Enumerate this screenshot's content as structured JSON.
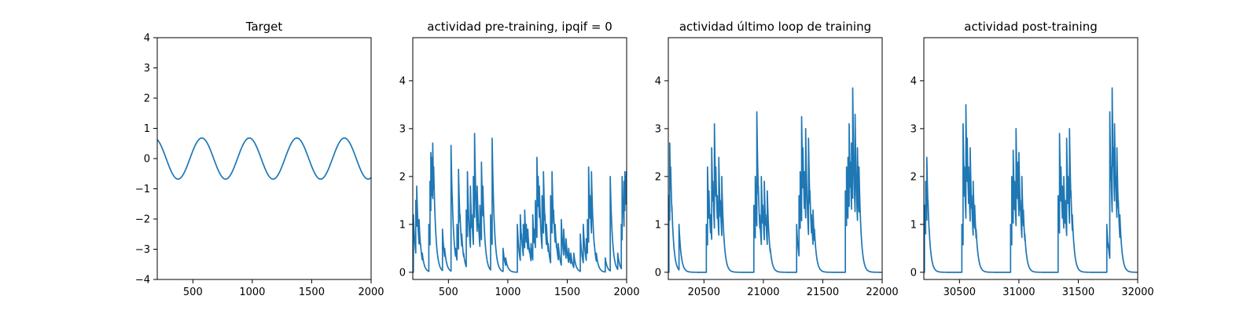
{
  "chart_data": [
    {
      "type": "line",
      "title": "Target",
      "xlabel": "",
      "ylabel": "",
      "xlim": [
        200,
        2000
      ],
      "ylim": [
        -4,
        4
      ],
      "xticks": [
        500,
        1000,
        1500,
        2000
      ],
      "yticks": [
        -4,
        -3,
        -2,
        -1,
        0,
        1,
        2,
        3,
        4
      ],
      "color": "#1f77b4",
      "grid": false,
      "series": [
        {
          "kind": "sine",
          "amplitude": 0.68,
          "period": 400,
          "peak_x": 575,
          "x_start": 200,
          "x_end": 2000
        }
      ]
    },
    {
      "type": "line",
      "title": "actividad pre-training, ipqif = 0",
      "xlabel": "",
      "ylabel": "",
      "xlim": [
        200,
        2000
      ],
      "ylim": [
        -0.15,
        4.9
      ],
      "xticks": [
        500,
        1000,
        1500,
        2000
      ],
      "yticks": [
        0,
        1,
        2,
        3,
        4
      ],
      "color": "#1f77b4",
      "grid": false,
      "series": [
        {
          "kind": "spikes",
          "baseline": 0,
          "decay": 18,
          "spikes": [
            [
              205,
              1.2
            ],
            [
              215,
              0.7
            ],
            [
              225,
              1.5
            ],
            [
              233,
              1.8
            ],
            [
              243,
              0.9
            ],
            [
              253,
              1.1
            ],
            [
              265,
              0.6
            ],
            [
              280,
              0.4
            ],
            [
              335,
              1.0
            ],
            [
              345,
              1.9
            ],
            [
              352,
              2.5
            ],
            [
              360,
              2.4
            ],
            [
              368,
              2.7
            ],
            [
              376,
              2.2
            ],
            [
              385,
              1.3
            ],
            [
              450,
              0.9
            ],
            [
              468,
              0.5
            ],
            [
              522,
              2.65
            ],
            [
              532,
              1.6
            ],
            [
              560,
              0.5
            ],
            [
              572,
              1.0
            ],
            [
              585,
              2.15
            ],
            [
              598,
              1.2
            ],
            [
              612,
              0.8
            ],
            [
              628,
              0.4
            ],
            [
              650,
              1.3
            ],
            [
              660,
              2.1
            ],
            [
              672,
              1.0
            ],
            [
              685,
              1.8
            ],
            [
              697,
              1.2
            ],
            [
              710,
              2.0
            ],
            [
              720,
              2.9
            ],
            [
              730,
              1.5
            ],
            [
              742,
              1.8
            ],
            [
              754,
              1.0
            ],
            [
              765,
              1.4
            ],
            [
              778,
              2.3
            ],
            [
              790,
              1.8
            ],
            [
              802,
              0.8
            ],
            [
              815,
              0.4
            ],
            [
              855,
              1.2
            ],
            [
              868,
              2.8
            ],
            [
              882,
              0.7
            ],
            [
              900,
              0.4
            ],
            [
              960,
              0.5
            ],
            [
              982,
              0.3
            ],
            [
              1080,
              1.0
            ],
            [
              1105,
              1.2
            ],
            [
              1115,
              0.8
            ],
            [
              1130,
              1.0
            ],
            [
              1142,
              1.3
            ],
            [
              1155,
              1.0
            ],
            [
              1168,
              0.9
            ],
            [
              1182,
              0.5
            ],
            [
              1195,
              0.6
            ],
            [
              1210,
              1.2
            ],
            [
              1222,
              0.9
            ],
            [
              1232,
              1.5
            ],
            [
              1245,
              2.4
            ],
            [
              1255,
              2.0
            ],
            [
              1265,
              1.8
            ],
            [
              1275,
              1.0
            ],
            [
              1288,
              1.6
            ],
            [
              1300,
              2.1
            ],
            [
              1312,
              1.2
            ],
            [
              1325,
              1.0
            ],
            [
              1340,
              0.6
            ],
            [
              1360,
              1.6
            ],
            [
              1372,
              2.1
            ],
            [
              1385,
              1.3
            ],
            [
              1398,
              1.0
            ],
            [
              1410,
              0.6
            ],
            [
              1425,
              0.6
            ],
            [
              1450,
              1.1
            ],
            [
              1470,
              0.9
            ],
            [
              1490,
              0.7
            ],
            [
              1512,
              0.5
            ],
            [
              1530,
              0.4
            ],
            [
              1555,
              0.4
            ],
            [
              1610,
              0.8
            ],
            [
              1635,
              1.0
            ],
            [
              1660,
              0.7
            ],
            [
              1670,
              1.1
            ],
            [
              1680,
              2.2
            ],
            [
              1692,
              1.6
            ],
            [
              1704,
              2.1
            ],
            [
              1716,
              1.1
            ],
            [
              1728,
              0.6
            ],
            [
              1745,
              0.4
            ],
            [
              1820,
              0.3
            ],
            [
              1862,
              2.0
            ],
            [
              1875,
              0.8
            ],
            [
              1890,
              0.4
            ],
            [
              1925,
              0.4
            ],
            [
              1955,
              1.0
            ],
            [
              1962,
              2.0
            ],
            [
              1970,
              1.5
            ],
            [
              1978,
              1.9
            ],
            [
              1985,
              2.1
            ],
            [
              1992,
              2.0
            ],
            [
              1998,
              2.1
            ]
          ]
        }
      ]
    },
    {
      "type": "line",
      "title": "actividad último loop de training",
      "xlabel": "",
      "ylabel": "",
      "xlim": [
        20200,
        22000
      ],
      "ylim": [
        -0.15,
        4.9
      ],
      "xticks": [
        20500,
        21000,
        21500,
        22000
      ],
      "yticks": [
        0,
        1,
        2,
        3,
        4
      ],
      "color": "#1f77b4",
      "grid": false,
      "series": [
        {
          "kind": "spikes",
          "baseline": 0,
          "decay": 18,
          "spikes": [
            [
              20205,
              1.6
            ],
            [
              20212,
              2.7
            ],
            [
              20220,
              2.2
            ],
            [
              20230,
              1.4
            ],
            [
              20240,
              0.7
            ],
            [
              20290,
              1.0
            ],
            [
              20520,
              1.0
            ],
            [
              20530,
              2.2
            ],
            [
              20542,
              1.7
            ],
            [
              20555,
              1.2
            ],
            [
              20565,
              2.6
            ],
            [
              20575,
              1.9
            ],
            [
              20588,
              3.1
            ],
            [
              20600,
              2.2
            ],
            [
              20612,
              1.6
            ],
            [
              20625,
              2.4
            ],
            [
              20638,
              1.5
            ],
            [
              20650,
              2.0
            ],
            [
              20662,
              1.0
            ],
            [
              20675,
              0.5
            ],
            [
              20920,
              1.4
            ],
            [
              20932,
              2.0
            ],
            [
              20945,
              3.35
            ],
            [
              20958,
              1.8
            ],
            [
              20970,
              1.2
            ],
            [
              20983,
              2.0
            ],
            [
              20995,
              1.4
            ],
            [
              21008,
              1.9
            ],
            [
              21020,
              1.2
            ],
            [
              21033,
              1.7
            ],
            [
              21045,
              0.8
            ],
            [
              21058,
              0.5
            ],
            [
              21280,
              1.0
            ],
            [
              21290,
              0.6
            ],
            [
              21300,
              1.6
            ],
            [
              21310,
              2.1
            ],
            [
              21322,
              3.25
            ],
            [
              21333,
              2.6
            ],
            [
              21345,
              2.1
            ],
            [
              21356,
              3.0
            ],
            [
              21368,
              1.5
            ],
            [
              21380,
              2.8
            ],
            [
              21392,
              1.7
            ],
            [
              21405,
              1.2
            ],
            [
              21418,
              1.3
            ],
            [
              21430,
              0.9
            ],
            [
              21690,
              1.7
            ],
            [
              21700,
              2.2
            ],
            [
              21712,
              2.4
            ],
            [
              21722,
              3.1
            ],
            [
              21732,
              2.3
            ],
            [
              21742,
              2.7
            ],
            [
              21752,
              3.85
            ],
            [
              21762,
              2.0
            ],
            [
              21772,
              3.3
            ],
            [
              21782,
              1.8
            ],
            [
              21792,
              2.6
            ],
            [
              21805,
              2.2
            ],
            [
              21818,
              1.0
            ],
            [
              21830,
              0.4
            ]
          ]
        }
      ]
    },
    {
      "type": "line",
      "title": "actividad post-training",
      "xlabel": "",
      "ylabel": "",
      "xlim": [
        30200,
        32000
      ],
      "ylim": [
        -0.15,
        4.9
      ],
      "xticks": [
        30500,
        31000,
        31500,
        32000
      ],
      "yticks": [
        0,
        1,
        2,
        3,
        4
      ],
      "color": "#1f77b4",
      "grid": false,
      "series": [
        {
          "kind": "spikes",
          "baseline": 0,
          "decay": 18,
          "spikes": [
            [
              30205,
              1.4
            ],
            [
              30215,
              1.9
            ],
            [
              30225,
              2.4
            ],
            [
              30235,
              1.5
            ],
            [
              30245,
              0.9
            ],
            [
              30258,
              0.4
            ],
            [
              30520,
              1.0
            ],
            [
              30530,
              3.1
            ],
            [
              30542,
              2.2
            ],
            [
              30554,
              3.5
            ],
            [
              30565,
              2.8
            ],
            [
              30577,
              2.2
            ],
            [
              30590,
              2.6
            ],
            [
              30602,
              1.6
            ],
            [
              30615,
              1.9
            ],
            [
              30628,
              1.4
            ],
            [
              30640,
              0.9
            ],
            [
              30655,
              0.4
            ],
            [
              30930,
              1.0
            ],
            [
              30940,
              2.0
            ],
            [
              30952,
              2.55
            ],
            [
              30964,
              1.9
            ],
            [
              30976,
              3.0
            ],
            [
              30988,
              2.3
            ],
            [
              31000,
              2.5
            ],
            [
              31012,
              1.5
            ],
            [
              31025,
              2.0
            ],
            [
              31038,
              1.3
            ],
            [
              31050,
              0.8
            ],
            [
              31062,
              0.4
            ],
            [
              31330,
              1.6
            ],
            [
              31342,
              2.9
            ],
            [
              31354,
              2.2
            ],
            [
              31366,
              1.8
            ],
            [
              31378,
              2.0
            ],
            [
              31390,
              1.5
            ],
            [
              31402,
              2.8
            ],
            [
              31414,
              2.0
            ],
            [
              31426,
              3.0
            ],
            [
              31438,
              1.7
            ],
            [
              31450,
              1.2
            ],
            [
              31462,
              0.6
            ],
            [
              31740,
              1.0
            ],
            [
              31752,
              0.6
            ],
            [
              31765,
              3.35
            ],
            [
              31775,
              2.2
            ],
            [
              31785,
              3.85
            ],
            [
              31795,
              2.6
            ],
            [
              31805,
              3.1
            ],
            [
              31815,
              2.0
            ],
            [
              31825,
              2.6
            ],
            [
              31837,
              1.5
            ],
            [
              31850,
              1.2
            ],
            [
              31862,
              0.5
            ]
          ]
        }
      ]
    }
  ]
}
